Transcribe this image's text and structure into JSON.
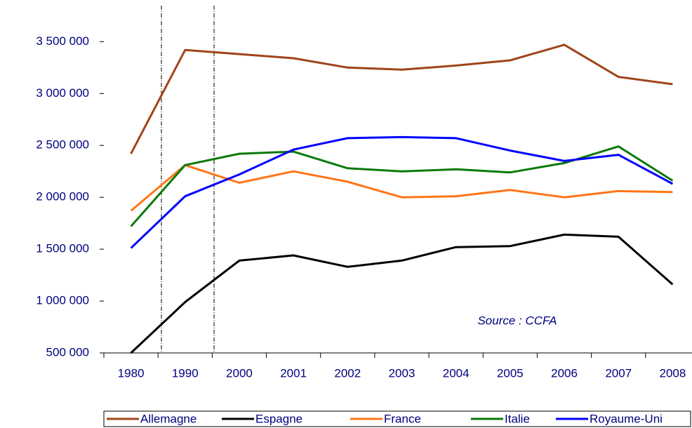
{
  "chart_data": {
    "type": "line",
    "annotation": "Source : CCFA",
    "categories": [
      "1980",
      "1990",
      "2000",
      "2001",
      "2002",
      "2003",
      "2004",
      "2005",
      "2006",
      "2007",
      "2008"
    ],
    "series": [
      {
        "name": "Allemagne",
        "color": "#a0441a",
        "values": [
          2420000,
          3420000,
          3380000,
          3340000,
          3250000,
          3230000,
          3270000,
          3320000,
          3470000,
          3160000,
          3090000
        ]
      },
      {
        "name": "Espagne",
        "color": "#000000",
        "values": [
          500000,
          990000,
          1390000,
          1440000,
          1330000,
          1390000,
          1520000,
          1530000,
          1640000,
          1620000,
          1160000
        ]
      },
      {
        "name": "France",
        "color": "#ff7518",
        "values": [
          1870000,
          2310000,
          2140000,
          2250000,
          2150000,
          2000000,
          2010000,
          2070000,
          2000000,
          2060000,
          2050000
        ]
      },
      {
        "name": "Italie",
        "color": "#0a7a0a",
        "values": [
          1720000,
          2310000,
          2420000,
          2440000,
          2280000,
          2250000,
          2270000,
          2240000,
          2330000,
          2490000,
          2160000
        ]
      },
      {
        "name": "Royaume-Uni",
        "color": "#0000ff",
        "values": [
          1510000,
          2010000,
          2220000,
          2460000,
          2570000,
          2580000,
          2570000,
          2450000,
          2350000,
          2410000,
          2130000
        ]
      }
    ],
    "ylim": [
      500000,
      3800000
    ],
    "yticks": [
      {
        "value": 500000,
        "label": "500 000"
      },
      {
        "value": 1000000,
        "label": "1 000 000"
      },
      {
        "value": 1500000,
        "label": "1 500 000"
      },
      {
        "value": 2000000,
        "label": "2 000 000"
      },
      {
        "value": 2500000,
        "label": "2 500 000"
      },
      {
        "value": 3000000,
        "label": "3 000 000"
      },
      {
        "value": 3500000,
        "label": "3 500 000"
      }
    ],
    "grid": false,
    "legend": "bottom"
  }
}
